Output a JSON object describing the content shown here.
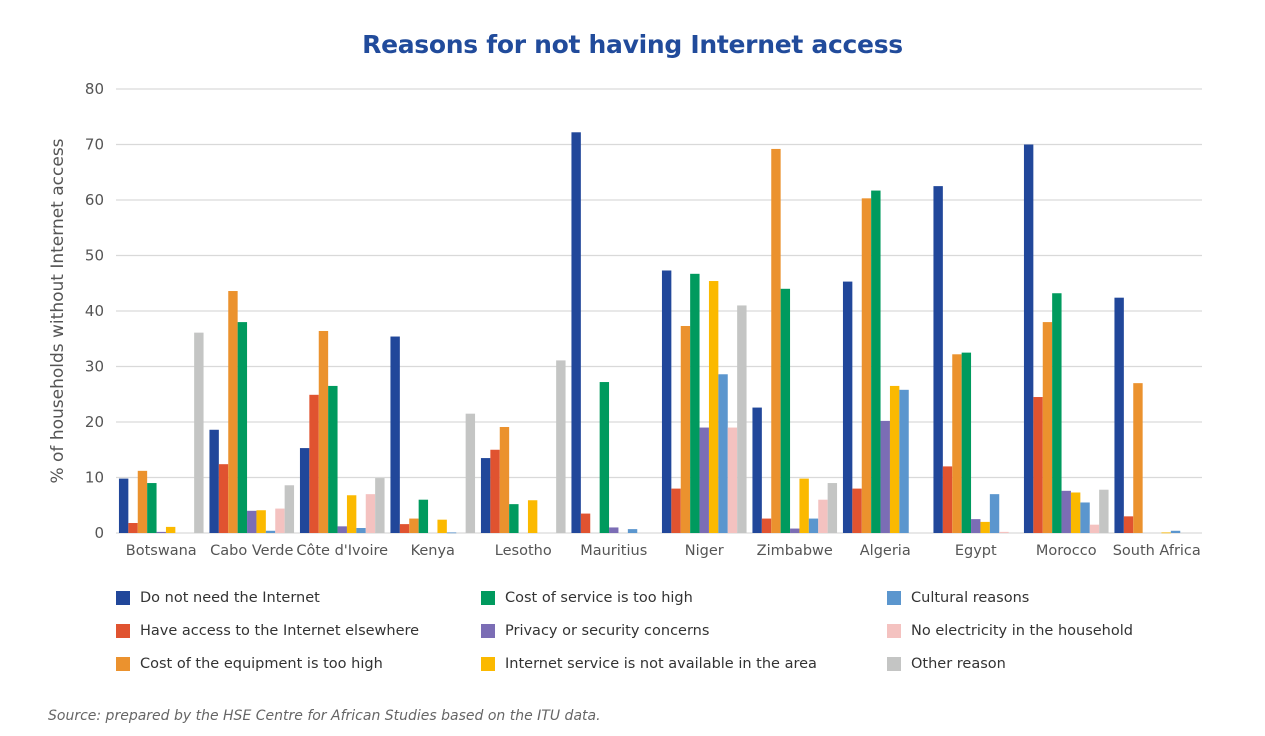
{
  "chart_data": {
    "type": "bar",
    "title": "Reasons for not having Internet access",
    "xlabel": "",
    "ylabel": "% of households without Internet access",
    "ylim": [
      0,
      80
    ],
    "yticks": [
      0,
      10,
      20,
      30,
      40,
      50,
      60,
      70,
      80
    ],
    "grid": true,
    "legend_position": "bottom",
    "categories": [
      "Botswana",
      "Cabo Verde",
      "Côte d'Ivoire",
      "Kenya",
      "Lesotho",
      "Mauritius",
      "Niger",
      "Zimbabwe",
      "Algeria",
      "Egypt",
      "Morocco",
      "South Africa"
    ],
    "series": [
      {
        "name": "Do not need the Internet",
        "color": "#21479a",
        "values": [
          9.8,
          18.6,
          15.3,
          35.4,
          13.5,
          72.2,
          47.3,
          22.6,
          45.3,
          62.5,
          70.0,
          42.4
        ]
      },
      {
        "name": "Have access to the Internet elsewhere",
        "color": "#e05330",
        "values": [
          1.8,
          12.4,
          24.9,
          1.6,
          15.0,
          3.5,
          8.0,
          2.6,
          8.0,
          12.0,
          24.5,
          3.0
        ]
      },
      {
        "name": "Cost of the equipment is too high",
        "color": "#eb922e",
        "values": [
          11.2,
          43.6,
          36.4,
          2.6,
          19.1,
          0,
          37.3,
          69.2,
          60.3,
          32.2,
          38.0,
          27.0
        ]
      },
      {
        "name": "Cost of service is too high",
        "color": "#009a5e",
        "values": [
          9.0,
          38.0,
          26.5,
          6.0,
          5.2,
          27.2,
          46.7,
          44.0,
          61.7,
          32.5,
          43.2,
          0
        ]
      },
      {
        "name": "Privacy or security concerns",
        "color": "#7b6db5",
        "values": [
          0.2,
          4.0,
          1.2,
          0,
          0,
          1.0,
          19.0,
          0.8,
          20.2,
          2.5,
          7.6,
          0
        ]
      },
      {
        "name": "Internet service is not available in the area",
        "color": "#fbb900",
        "values": [
          1.1,
          4.1,
          6.8,
          2.4,
          5.9,
          0,
          45.4,
          9.8,
          26.5,
          2.0,
          7.3,
          0.1
        ]
      },
      {
        "name": "Cultural reasons",
        "color": "#5b96ce",
        "values": [
          0,
          0.4,
          0.9,
          0.1,
          0,
          0.7,
          28.6,
          2.6,
          25.8,
          7.0,
          5.5,
          0.4
        ]
      },
      {
        "name": "No electricity in the household",
        "color": "#f4c2c0",
        "values": [
          0,
          4.4,
          7.0,
          0,
          0,
          0,
          19.0,
          6.0,
          0,
          0.2,
          1.5,
          0
        ]
      },
      {
        "name": "Other reason",
        "color": "#c4c5c4",
        "values": [
          36.1,
          8.6,
          9.9,
          21.5,
          31.1,
          0,
          41.0,
          9.0,
          0,
          0,
          7.8,
          0
        ]
      }
    ]
  },
  "source": "Source: prepared by the HSE Centre for African Studies based on the ITU data."
}
